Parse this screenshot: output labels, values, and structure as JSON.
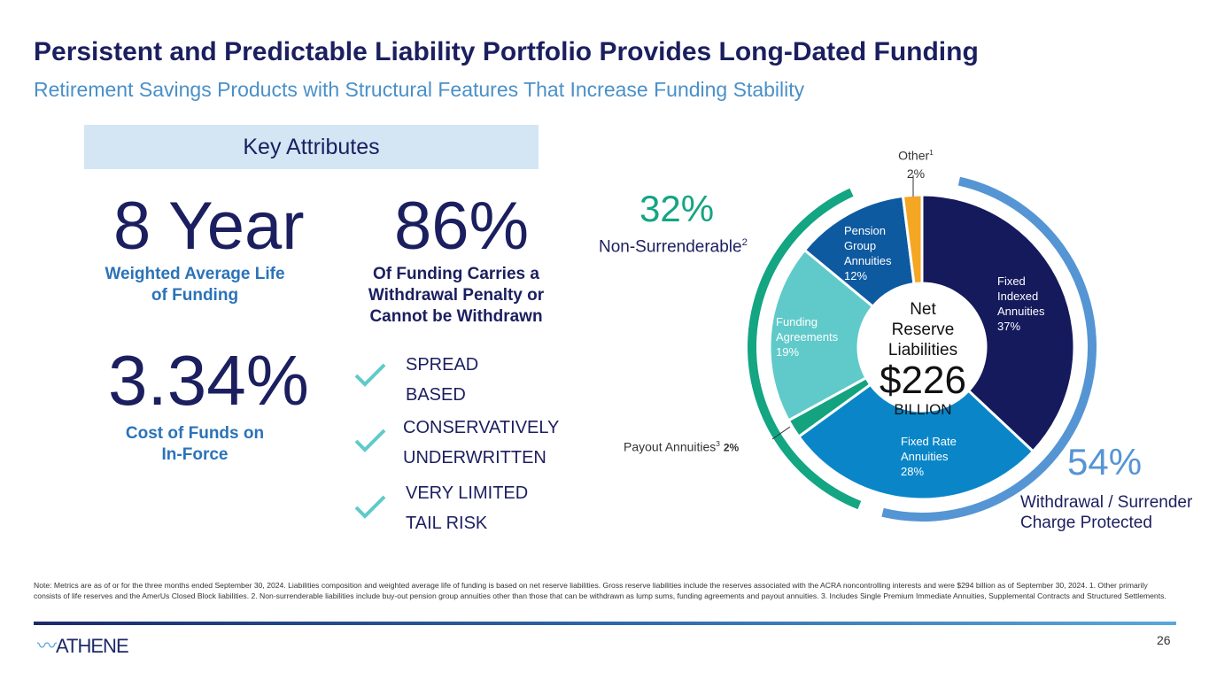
{
  "header": {
    "title": "Persistent and Predictable Liability Portfolio Provides Long-Dated Funding",
    "subtitle": "Retirement Savings Products with Structural Features That Increase Funding Stability"
  },
  "key_attributes": {
    "heading": "Key Attributes",
    "metrics": [
      {
        "value": "8 Year",
        "label_line1": "Weighted Average Life",
        "label_line2": "of Funding"
      },
      {
        "value": "86%",
        "label_line1": "Of Funding Carries a",
        "label_line2": "Withdrawal Penalty or",
        "label_line3": "Cannot be Withdrawn"
      },
      {
        "value": "3.34%",
        "label_line1": "Cost of Funds on",
        "label_line2": "In-Force"
      }
    ],
    "checks": [
      {
        "line1": "SPREAD",
        "line2": "BASED"
      },
      {
        "line1": "CONSERVATIVELY",
        "line2": "UNDERWRITTEN"
      },
      {
        "line1": "VERY LIMITED",
        "line2": "TAIL RISK"
      }
    ]
  },
  "chart_data": {
    "type": "pie",
    "subtype": "donut",
    "title": "Net Reserve Liabilities",
    "center_value": "$226",
    "center_unit": "BILLION",
    "slices": [
      {
        "name": "Fixed Indexed Annuities",
        "value": 37,
        "label": "37%",
        "color": "#141a5c"
      },
      {
        "name": "Fixed Rate Annuities",
        "value": 28,
        "label": "28%",
        "color": "#0a86c8"
      },
      {
        "name": "Payout Annuities",
        "value": 2,
        "label": "2%",
        "color": "#13a37f",
        "footnote": "3"
      },
      {
        "name": "Funding Agreements",
        "value": 19,
        "label": "19%",
        "color": "#5fcac9"
      },
      {
        "name": "Pension Group Annuities",
        "value": 12,
        "label": "12%",
        "color": "#0e5aa0"
      },
      {
        "name": "Other",
        "value": 2,
        "label": "2%",
        "color": "#f5a623",
        "footnote": "1"
      }
    ],
    "groups": [
      {
        "label": "54%",
        "name": "Withdrawal / Surrender",
        "name2": "Charge Protected",
        "color": "#5595d4",
        "value": 54
      },
      {
        "label": "32%",
        "name": "Non-Surrenderable",
        "footnote": "2",
        "color": "#14a582",
        "value": 32
      }
    ]
  },
  "footer": {
    "note": "Note: Metrics are as of or for the three months ended September 30, 2024. Liabilities composition and weighted average life of funding is based on net reserve liabilities. Gross reserve liabilities include the reserves associated with the ACRA noncontrolling interests and were $294 billion as of September 30, 2024. 1. Other primarily consists of life reserves and the AmerUs Closed Block liabilities. 2. Non-surrenderable liabilities include buy-out pension group annuities other than those that can be withdrawn as lump sums, funding agreements and payout annuities. 3. Includes Single Premium Immediate Annuities, Supplemental Contracts and Structured Settlements.",
    "logo": "ATHENE",
    "page": "26"
  }
}
